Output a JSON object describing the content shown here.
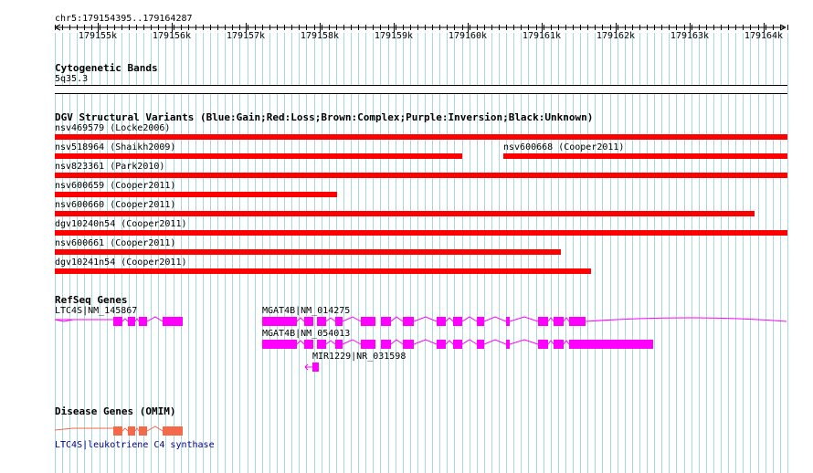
{
  "ruler": {
    "region": "chr5:179154395..179164287",
    "ticks": [
      "179155k",
      "179156k",
      "179157k",
      "179158k",
      "179159k",
      "179160k",
      "179161k",
      "179162k",
      "179163k",
      "179164k"
    ]
  },
  "cyto": {
    "title": "Cytogenetic Bands",
    "band": "5q35.3"
  },
  "dgv": {
    "title": "DGV Structural Variants (Blue:Gain;Red:Loss;Brown:Complex;Purple:Inversion;Black:Unknown)",
    "color": "#ff0000",
    "variants": [
      {
        "label": "nsv469579 (Locke2006)"
      },
      {
        "label": "nsv518964 (Shaikh2009)"
      },
      {
        "label": "nsv600668 (Cooper2011)"
      },
      {
        "label": "nsv823361 (Park2010)"
      },
      {
        "label": "nsv600659 (Cooper2011)"
      },
      {
        "label": "nsv600660 (Cooper2011)"
      },
      {
        "label": "dgv10240n54 (Cooper2011)"
      },
      {
        "label": "nsv600661 (Cooper2011)"
      },
      {
        "label": "dgv10241n54 (Cooper2011)"
      }
    ]
  },
  "refseq": {
    "title": "RefSeq Genes",
    "color": "#ff00ff",
    "genes": [
      {
        "label": "LTC4S|NM_145867"
      },
      {
        "label": "MGAT4B|NM_014275"
      },
      {
        "label": "MGAT4B|NM_054013"
      },
      {
        "label": "MIR1229|NR_031598"
      }
    ]
  },
  "disease": {
    "title": "Disease Genes (OMIM)",
    "color": "#f4694a",
    "gene_label": "LTC4S|leukotriene C4 synthase"
  }
}
